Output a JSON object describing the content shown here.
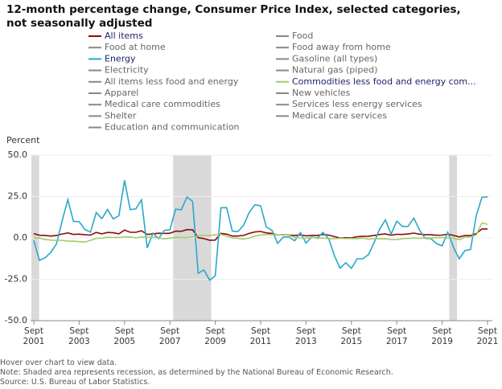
{
  "chart_data": {
    "type": "line",
    "title": "12-month percentage change, Consumer Price Index, selected categories, not seasonally adjusted",
    "y_label": "Percent",
    "notes": [
      "Hover over chart to view data.",
      "Note: Shaded area represents recession, as determined by the National Bureau of Economic Research.",
      "Source: U.S. Bureau of Labor Statistics."
    ],
    "x": [
      "2001-09",
      "2001-12",
      "2002-03",
      "2002-06",
      "2002-09",
      "2002-12",
      "2003-03",
      "2003-06",
      "2003-09",
      "2003-12",
      "2004-03",
      "2004-06",
      "2004-09",
      "2004-12",
      "2005-03",
      "2005-06",
      "2005-09",
      "2005-12",
      "2006-03",
      "2006-06",
      "2006-09",
      "2006-12",
      "2007-03",
      "2007-06",
      "2007-09",
      "2007-12",
      "2008-03",
      "2008-06",
      "2008-09",
      "2008-12",
      "2009-03",
      "2009-06",
      "2009-09",
      "2009-12",
      "2010-03",
      "2010-06",
      "2010-09",
      "2010-12",
      "2011-03",
      "2011-06",
      "2011-09",
      "2011-12",
      "2012-03",
      "2012-06",
      "2012-09",
      "2012-12",
      "2013-03",
      "2013-06",
      "2013-09",
      "2013-12",
      "2014-03",
      "2014-06",
      "2014-09",
      "2014-12",
      "2015-03",
      "2015-06",
      "2015-09",
      "2015-12",
      "2016-03",
      "2016-06",
      "2016-09",
      "2016-12",
      "2017-03",
      "2017-06",
      "2017-09",
      "2017-12",
      "2018-03",
      "2018-06",
      "2018-09",
      "2018-12",
      "2019-03",
      "2019-06",
      "2019-09",
      "2019-12",
      "2020-03",
      "2020-06",
      "2020-09",
      "2020-12",
      "2021-03",
      "2021-06",
      "2021-09"
    ],
    "xlim": [
      "2001-09",
      "2021-09"
    ],
    "xticks": [
      {
        "value": "2001-09",
        "label": "Sept 2001"
      },
      {
        "value": "2003-09",
        "label": "Sept 2003"
      },
      {
        "value": "2005-09",
        "label": "Sept 2005"
      },
      {
        "value": "2007-09",
        "label": "Sept 2007"
      },
      {
        "value": "2009-09",
        "label": "Sept 2009"
      },
      {
        "value": "2011-09",
        "label": "Sept 2011"
      },
      {
        "value": "2013-09",
        "label": "Sept 2013"
      },
      {
        "value": "2015-09",
        "label": "Sept 2015"
      },
      {
        "value": "2017-09",
        "label": "Sept 2017"
      },
      {
        "value": "2019-09",
        "label": "Sept 2019"
      },
      {
        "value": "2021-09",
        "label": "Sept 2021"
      }
    ],
    "ylim": [
      -50,
      50
    ],
    "yticks": [
      {
        "value": 50,
        "label": "50.0"
      },
      {
        "value": 25,
        "label": "25.0"
      },
      {
        "value": 0,
        "label": "0.0"
      },
      {
        "value": -25,
        "label": "-25.0"
      },
      {
        "value": -50,
        "label": "-50.0"
      }
    ],
    "grid": true,
    "shaded_periods": [
      {
        "start": "2001-09",
        "end": "2001-11"
      },
      {
        "start": "2007-12",
        "end": "2009-06"
      },
      {
        "start": "2020-02",
        "end": "2020-04"
      }
    ],
    "shade_color": "#d9d9d9",
    "series": [
      {
        "name": "All items",
        "color": "#8b0a0a",
        "visible": true,
        "values": [
          2.6,
          1.6,
          1.5,
          1.1,
          1.5,
          2.4,
          3.0,
          2.1,
          2.3,
          1.9,
          1.7,
          3.3,
          2.5,
          3.3,
          3.1,
          2.5,
          4.7,
          3.4,
          3.4,
          4.3,
          2.1,
          2.5,
          2.8,
          2.7,
          2.8,
          4.1,
          4.0,
          5.0,
          4.9,
          0.1,
          -0.4,
          -1.4,
          -1.3,
          2.7,
          2.3,
          1.1,
          1.1,
          1.5,
          2.7,
          3.6,
          3.9,
          3.0,
          2.7,
          1.7,
          2.0,
          1.7,
          1.5,
          1.8,
          1.2,
          1.5,
          1.5,
          2.1,
          1.7,
          0.8,
          -0.1,
          0.1,
          0.0,
          0.7,
          0.9,
          1.0,
          1.5,
          2.1,
          2.4,
          1.6,
          2.2,
          2.1,
          2.4,
          2.9,
          2.3,
          1.9,
          1.9,
          1.6,
          1.7,
          2.3,
          1.5,
          0.6,
          1.4,
          1.4,
          2.6,
          5.4,
          5.4
        ]
      },
      {
        "name": "Food",
        "visible": false
      },
      {
        "name": "Food at home",
        "visible": false
      },
      {
        "name": "Food away from home",
        "visible": false
      },
      {
        "name": "Energy",
        "color": "#29a8c9",
        "visible": true,
        "values": [
          -1.5,
          -13.6,
          -12.0,
          -8.8,
          -3.6,
          10.4,
          23.1,
          10.0,
          9.8,
          5.1,
          3.5,
          15.3,
          11.6,
          17.2,
          11.5,
          13.4,
          34.8,
          17.1,
          17.5,
          23.0,
          -6.0,
          2.9,
          -0.5,
          4.5,
          4.9,
          17.4,
          17.0,
          24.7,
          22.1,
          -21.3,
          -19.3,
          -25.5,
          -22.9,
          18.2,
          18.3,
          4.1,
          3.8,
          7.7,
          15.5,
          20.1,
          19.3,
          6.6,
          4.6,
          -3.3,
          0.6,
          0.5,
          -1.7,
          3.2,
          -3.1,
          0.5,
          -0.1,
          3.3,
          -0.5,
          -10.6,
          -18.3,
          -15.0,
          -18.4,
          -12.6,
          -12.6,
          -10.1,
          -2.9,
          5.4,
          10.9,
          2.3,
          10.1,
          6.9,
          7.0,
          12.0,
          4.8,
          -0.3,
          -0.4,
          -3.4,
          -4.8,
          3.4,
          -5.7,
          -12.6,
          -7.7,
          -7.0,
          13.2,
          24.5,
          24.8
        ]
      },
      {
        "name": "Gasoline (all types)",
        "visible": false
      },
      {
        "name": "Electricity",
        "visible": false
      },
      {
        "name": "Natural gas (piped)",
        "visible": false
      },
      {
        "name": "All items less food and energy",
        "visible": false
      },
      {
        "name": "Commodities less food and energy com...",
        "color": "#a3cc6a",
        "visible": true,
        "values": [
          0.2,
          -0.1,
          -1.0,
          -1.3,
          -1.5,
          -1.5,
          -2.0,
          -2.0,
          -2.3,
          -2.5,
          -1.5,
          -0.3,
          -0.1,
          0.4,
          0.3,
          0.3,
          0.6,
          0.6,
          0.0,
          0.6,
          0.5,
          0.4,
          -0.1,
          -0.6,
          -0.1,
          0.3,
          0.2,
          0.1,
          0.8,
          1.2,
          1.6,
          1.5,
          1.9,
          2.2,
          1.1,
          0.0,
          -0.3,
          -0.8,
          0.0,
          1.1,
          1.8,
          2.0,
          2.0,
          1.8,
          2.0,
          1.5,
          0.4,
          0.0,
          -0.2,
          0.4,
          -0.3,
          -0.1,
          -0.5,
          -0.5,
          -0.2,
          -0.4,
          -0.4,
          -0.5,
          -0.1,
          -0.8,
          -0.5,
          -0.6,
          -0.6,
          -0.9,
          -1.0,
          -0.5,
          -0.3,
          0.0,
          -0.3,
          0.1,
          -0.1,
          0.1,
          0.3,
          -0.1,
          -0.1,
          -1.1,
          0.4,
          0.7,
          1.7,
          9.0,
          8.2
        ]
      },
      {
        "name": "Apparel",
        "visible": false
      },
      {
        "name": "New vehicles",
        "visible": false
      },
      {
        "name": "Medical care commodities",
        "visible": false
      },
      {
        "name": "Services less energy services",
        "visible": false
      },
      {
        "name": "Shelter",
        "visible": false
      },
      {
        "name": "Medical care services",
        "visible": false
      },
      {
        "name": "Education and communication",
        "visible": false
      }
    ]
  }
}
